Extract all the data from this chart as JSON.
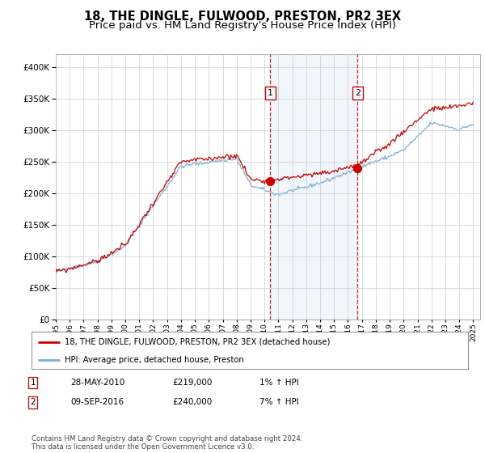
{
  "title": "18, THE DINGLE, FULWOOD, PRESTON, PR2 3EX",
  "subtitle": "Price paid vs. HM Land Registry's House Price Index (HPI)",
  "title_fontsize": 10.5,
  "subtitle_fontsize": 9.5,
  "ylim": [
    0,
    420000
  ],
  "yticks": [
    0,
    50000,
    100000,
    150000,
    200000,
    250000,
    300000,
    350000,
    400000
  ],
  "ytick_labels": [
    "£0",
    "£50K",
    "£100K",
    "£150K",
    "£200K",
    "£250K",
    "£300K",
    "£350K",
    "£400K"
  ],
  "xlim_start": 1995.0,
  "xlim_end": 2025.5,
  "sale1_year": 2010.41,
  "sale1_price": 219000,
  "sale1_label": "1",
  "sale1_date": "28-MAY-2010",
  "sale1_amount": "£219,000",
  "sale1_hpi": "1% ↑ HPI",
  "sale2_year": 2016.69,
  "sale2_price": 240000,
  "sale2_label": "2",
  "sale2_date": "09-SEP-2016",
  "sale2_amount": "£240,000",
  "sale2_hpi": "7% ↑ HPI",
  "property_line_color": "#cc0000",
  "hpi_line_color": "#7bafd4",
  "sale_marker_color": "#cc0000",
  "vline_color": "#cc0000",
  "shade_color": "#d6e8f7",
  "grid_color": "#cccccc",
  "background_color": "#ffffff",
  "legend_label1": "18, THE DINGLE, FULWOOD, PRESTON, PR2 3EX (detached house)",
  "legend_label2": "HPI: Average price, detached house, Preston",
  "footer_text": "Contains HM Land Registry data © Crown copyright and database right 2024.\nThis data is licensed under the Open Government Licence v3.0.",
  "xtick_years": [
    1995,
    1996,
    1997,
    1998,
    1999,
    2000,
    2001,
    2002,
    2003,
    2004,
    2005,
    2006,
    2007,
    2008,
    2009,
    2010,
    2011,
    2012,
    2013,
    2014,
    2015,
    2016,
    2017,
    2018,
    2019,
    2020,
    2021,
    2022,
    2023,
    2024,
    2025
  ]
}
